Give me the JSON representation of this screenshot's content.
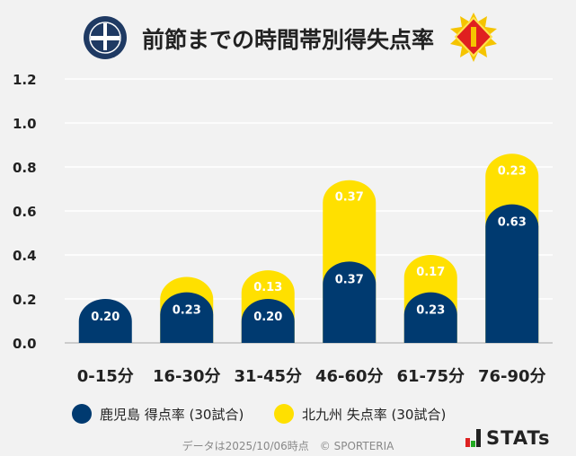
{
  "header": {
    "title": "前節までの時間帯別得失点率",
    "left_logo": "KAGOSHIMA UNITED FC",
    "right_logo": "kitakyushu-emblem"
  },
  "chart_data": {
    "type": "bar",
    "stacked": true,
    "categories": [
      "0-15分",
      "16-30分",
      "31-45分",
      "46-60分",
      "61-75分",
      "76-90分"
    ],
    "series": [
      {
        "name": "鹿児島 得点率 (30試合)",
        "color": "#003a70",
        "values": [
          0.2,
          0.23,
          0.2,
          0.37,
          0.23,
          0.63
        ],
        "labels": [
          "0.20",
          "0.23",
          "0.20",
          "0.37",
          "0.23",
          "0.63"
        ]
      },
      {
        "name": "北九州 失点率 (30試合)",
        "color": "#ffe000",
        "values": [
          0,
          0.07,
          0.13,
          0.37,
          0.17,
          0.23
        ],
        "labels": [
          "",
          "",
          "0.13",
          "0.37",
          "0.17",
          "0.23"
        ]
      }
    ],
    "ylim": [
      0,
      1.2
    ],
    "yticks": [
      "0.0",
      "0.2",
      "0.4",
      "0.6",
      "0.8",
      "1.0",
      "1.2"
    ],
    "grid": true,
    "legend": "bottom"
  },
  "legend": {
    "items": [
      "鹿児島 得点率 (30試合)",
      "北九州 失点率 (30試合)"
    ]
  },
  "footer": {
    "text": "データは2025/10/06時点　© SPORTERIA"
  },
  "brand": {
    "name": "STATs"
  }
}
